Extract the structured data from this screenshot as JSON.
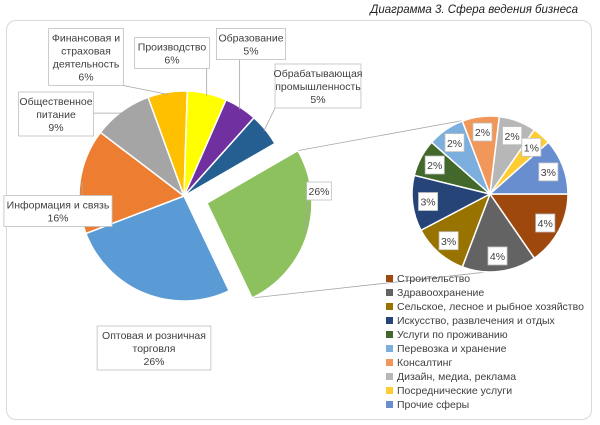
{
  "caption": "Диаграмма 3. Сфера ведения бизнеса",
  "chart_data": {
    "type": "pie",
    "subtype": "pie-of-pie",
    "main": {
      "start_angle_deg": 60,
      "slices": [
        {
          "name": "Прочие сферы",
          "value": 26,
          "label": "26%",
          "color": "#8dc15d",
          "exploded": true
        },
        {
          "name": "Оптовая и розничная торговля",
          "value": 26,
          "label": "Оптовая и розничная\nторговля\n26%",
          "color": "#5b9bd5"
        },
        {
          "name": "Информация и связь",
          "value": 16,
          "label": "Информация и связь\n16%",
          "color": "#ed7d31"
        },
        {
          "name": "Общественное питание",
          "value": 9,
          "label": "Общественное\nпитание\n9%",
          "color": "#a5a5a5"
        },
        {
          "name": "Финансовая и страховая деятельность",
          "value": 6,
          "label": "Финансовая и\nстраховая\nдеятельность\n6%",
          "color": "#ffc000"
        },
        {
          "name": "Производство",
          "value": 6,
          "label": "Производство\n6%",
          "color": "#ffff00"
        },
        {
          "name": "Образование",
          "value": 5,
          "label": "Образование\n5%",
          "color": "#7030a0"
        },
        {
          "name": "Обрабатывающая промышленность",
          "value": 5,
          "label": "Обрабатывающая\nпромышленность\n5%",
          "color": "#255e91"
        }
      ]
    },
    "secondary": {
      "slices": [
        {
          "name": "Строительство",
          "value": 4,
          "label": "4%",
          "color": "#9e480e"
        },
        {
          "name": "Здравоохранение",
          "value": 4,
          "label": "4%",
          "color": "#636363"
        },
        {
          "name": "Сельское, лесное и рыбное хозяйство",
          "value": 3,
          "label": "3%",
          "color": "#997300"
        },
        {
          "name": "Искусство, развлечения и отдых",
          "value": 3,
          "label": "3%",
          "color": "#264478"
        },
        {
          "name": "Услуги по проживанию",
          "value": 2,
          "label": "2%",
          "color": "#43682b"
        },
        {
          "name": "Перевозка и хранение",
          "value": 2,
          "label": "2%",
          "color": "#7cafdd"
        },
        {
          "name": "Консалтинг",
          "value": 2,
          "label": "2%",
          "color": "#f1975a"
        },
        {
          "name": "Дизайн, медиа, реклама",
          "value": 2,
          "label": "2%",
          "color": "#b7b7b7"
        },
        {
          "name": "Посреднические услуги",
          "value": 1,
          "label": "1%",
          "color": "#ffcd33"
        },
        {
          "name": "Прочие сферы",
          "value": 3,
          "label": "3%",
          "color": "#698ed0"
        }
      ]
    },
    "legend": {
      "placement": "bottom-right",
      "entries": [
        {
          "name": "Строительство",
          "color": "#9e480e"
        },
        {
          "name": "Здравоохранение",
          "color": "#636363"
        },
        {
          "name": "Сельское, лесное и рыбное хозяйство",
          "color": "#997300"
        },
        {
          "name": "Искусство, развлечения и отдых",
          "color": "#264478"
        },
        {
          "name": "Услуги по проживанию",
          "color": "#43682b"
        },
        {
          "name": "Перевозка и хранение",
          "color": "#7cafdd"
        },
        {
          "name": "Консалтинг",
          "color": "#f1975a"
        },
        {
          "name": "Дизайн, медиа, реклама",
          "color": "#b7b7b7"
        },
        {
          "name": "Посреднические услуги",
          "color": "#ffcd33"
        },
        {
          "name": "Прочие сферы",
          "color": "#698ed0"
        }
      ]
    }
  }
}
